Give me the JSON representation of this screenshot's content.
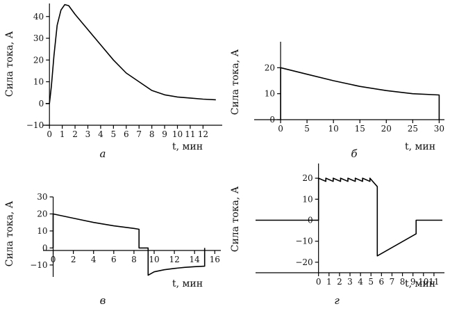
{
  "chart_data": [
    {
      "id": "a",
      "type": "line",
      "panel_label": "а",
      "ylabel": "Сила тока, А",
      "xlabel": "t, мин",
      "xlim": [
        -0.5,
        13.5
      ],
      "ylim": [
        -10,
        46
      ],
      "x_ticks": [
        0,
        1,
        2,
        3,
        4,
        5,
        6,
        7,
        8,
        9,
        10,
        11,
        12
      ],
      "y_ticks": [
        -10,
        0,
        10,
        20,
        30,
        40
      ],
      "series": [
        {
          "points": [
            [
              -0.3,
              0
            ],
            [
              0,
              0
            ],
            [
              0.15,
              8
            ],
            [
              0.35,
              22
            ],
            [
              0.6,
              36
            ],
            [
              0.9,
              43
            ],
            [
              1.2,
              45.5
            ],
            [
              1.5,
              45
            ],
            [
              2,
              41
            ],
            [
              3,
              34
            ],
            [
              4,
              27
            ],
            [
              5,
              20
            ],
            [
              6,
              14
            ],
            [
              7,
              10
            ],
            [
              8,
              6
            ],
            [
              9,
              4
            ],
            [
              10,
              3
            ],
            [
              11,
              2.5
            ],
            [
              12,
              2
            ],
            [
              13,
              1.7
            ]
          ]
        }
      ]
    },
    {
      "id": "b",
      "type": "line",
      "panel_label": "б",
      "ylabel": "Сила тока, А",
      "xlabel": "t, мин",
      "xlim": [
        -5,
        31
      ],
      "ylim": [
        0,
        30
      ],
      "x_ticks": [
        0,
        5,
        10,
        15,
        20,
        25,
        30
      ],
      "y_ticks": [
        0,
        10,
        20
      ],
      "series": [
        {
          "points": [
            [
              0,
              0
            ],
            [
              0,
              20
            ],
            [
              5,
              17.5
            ],
            [
              10,
              15
            ],
            [
              15,
              12.8
            ],
            [
              20,
              11.2
            ],
            [
              25,
              10
            ],
            [
              30,
              9.5
            ],
            [
              30,
              0
            ]
          ]
        }
      ]
    },
    {
      "id": "v",
      "type": "line",
      "panel_label": "в",
      "ylabel": "Сила тока, А",
      "xlabel": "t, мин",
      "xlim": [
        -1,
        16.6
      ],
      "ylim": [
        -17,
        30
      ],
      "x_ticks": [
        0,
        2,
        4,
        6,
        8,
        10,
        12,
        14,
        16
      ],
      "y_ticks": [
        -10,
        0,
        10,
        20,
        30
      ],
      "series": [
        {
          "points": [
            [
              0,
              0
            ],
            [
              0,
              20
            ],
            [
              2,
              17.5
            ],
            [
              4,
              15
            ],
            [
              6,
              13
            ],
            [
              8,
              11.5
            ],
            [
              8.5,
              11
            ],
            [
              8.5,
              0
            ],
            [
              9.4,
              0
            ],
            [
              9.4,
              -16
            ],
            [
              10,
              -14
            ],
            [
              11,
              -12.8
            ],
            [
              12,
              -12
            ],
            [
              13,
              -11.4
            ],
            [
              14,
              -11
            ],
            [
              15,
              -10.7
            ],
            [
              15,
              0
            ]
          ]
        }
      ]
    },
    {
      "id": "g",
      "type": "line",
      "panel_label": "г",
      "ylabel": "Сила тока, А",
      "xlabel": "t, мин",
      "xlim": [
        -6,
        12
      ],
      "ylim": [
        -25,
        27
      ],
      "x_ticks": [
        0,
        1,
        2,
        3,
        4,
        5,
        6,
        7,
        8,
        9,
        10,
        11
      ],
      "y_ticks": [
        -20,
        -10,
        0,
        10,
        20
      ],
      "series": [
        {
          "points": [
            [
              -6,
              0
            ],
            [
              0,
              0
            ],
            [
              0,
              20
            ],
            [
              0.7,
              18.5
            ],
            [
              0.7,
              20
            ],
            [
              1.4,
              18.5
            ],
            [
              1.4,
              20
            ],
            [
              2.1,
              18.5
            ],
            [
              2.1,
              20
            ],
            [
              2.8,
              18.5
            ],
            [
              2.8,
              20
            ],
            [
              3.5,
              18.5
            ],
            [
              3.5,
              20
            ],
            [
              4.2,
              18.5
            ],
            [
              4.2,
              20
            ],
            [
              4.9,
              18.5
            ],
            [
              4.9,
              20
            ],
            [
              5.6,
              16
            ],
            [
              5.6,
              -17
            ],
            [
              9.3,
              -6.5
            ],
            [
              9.3,
              0
            ],
            [
              11.8,
              0
            ]
          ]
        }
      ]
    }
  ]
}
